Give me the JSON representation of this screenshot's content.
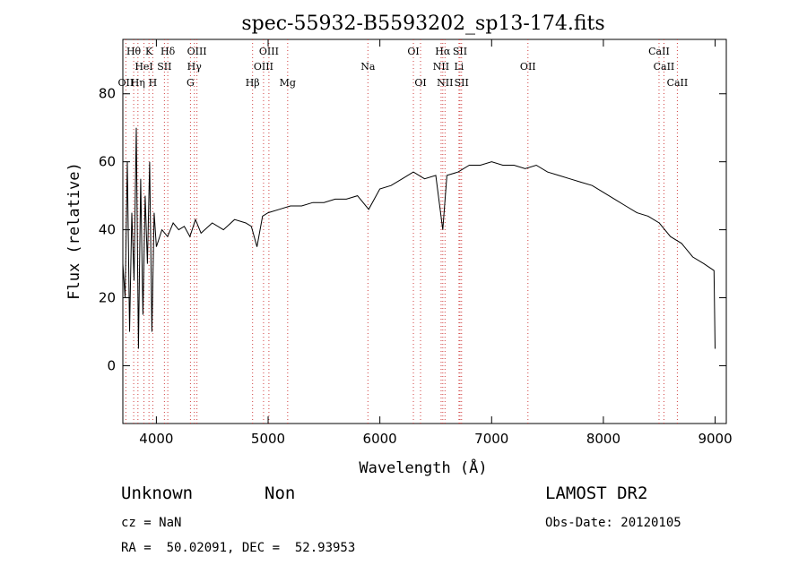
{
  "chart_data": {
    "type": "line",
    "title": "spec-55932-B5593202_sp13-174.fits",
    "xlabel": "Wavelength (Å)",
    "ylabel": "Flux (relative)",
    "xlim": [
      3700,
      9100
    ],
    "ylim": [
      -17,
      96
    ],
    "xticks": [
      4000,
      5000,
      6000,
      7000,
      8000,
      9000
    ],
    "yticks": [
      0,
      20,
      40,
      60,
      80
    ],
    "grid": false,
    "series": [
      {
        "x": [
          3700,
          3720,
          3740,
          3760,
          3780,
          3800,
          3820,
          3840,
          3860,
          3880,
          3900,
          3920,
          3940,
          3960,
          3980,
          4000,
          4050,
          4100,
          4150,
          4200,
          4250,
          4300,
          4350,
          4400,
          4500,
          4600,
          4700,
          4800,
          4850,
          4900,
          4950,
          5000,
          5100,
          5200,
          5300,
          5400,
          5500,
          5600,
          5700,
          5800,
          5900,
          6000,
          6100,
          6200,
          6300,
          6400,
          6500,
          6563,
          6600,
          6700,
          6800,
          6900,
          7000,
          7100,
          7200,
          7300,
          7400,
          7500,
          7600,
          7700,
          7800,
          7900,
          8000,
          8100,
          8200,
          8300,
          8400,
          8500,
          8600,
          8700,
          8800,
          8900,
          8990,
          9000
        ],
        "y": [
          30,
          20,
          60,
          10,
          45,
          25,
          70,
          5,
          55,
          15,
          50,
          30,
          60,
          10,
          45,
          35,
          40,
          38,
          42,
          40,
          41,
          38,
          43,
          39,
          42,
          40,
          43,
          42,
          41,
          35,
          44,
          45,
          46,
          47,
          47,
          48,
          48,
          49,
          49,
          50,
          46,
          52,
          53,
          55,
          57,
          55,
          56,
          40,
          56,
          57,
          59,
          59,
          60,
          59,
          59,
          58,
          59,
          57,
          56,
          55,
          54,
          53,
          51,
          49,
          47,
          45,
          44,
          42,
          38,
          36,
          32,
          30,
          28,
          5
        ]
      }
    ],
    "spectral_lines": [
      {
        "label": "Hθ",
        "x": 3797,
        "row": 0
      },
      {
        "label": "K",
        "x": 3934,
        "row": 0
      },
      {
        "label": "Hδ",
        "x": 4102,
        "row": 0
      },
      {
        "label": "OIII",
        "x": 4363,
        "row": 0
      },
      {
        "label": "OIII",
        "x": 5007,
        "row": 0
      },
      {
        "label": "OI",
        "x": 6300,
        "row": 0
      },
      {
        "label": "Hα",
        "x": 6563,
        "row": 0
      },
      {
        "label": "SII",
        "x": 6717,
        "row": 0
      },
      {
        "label": "CaII",
        "x": 8498,
        "row": 0
      },
      {
        "label": "HeI",
        "x": 3889,
        "row": 1
      },
      {
        "label": "SII",
        "x": 4072,
        "row": 1
      },
      {
        "label": "Hγ",
        "x": 4340,
        "row": 1
      },
      {
        "label": "OIII",
        "x": 4959,
        "row": 1
      },
      {
        "label": "Na",
        "x": 5893,
        "row": 1
      },
      {
        "label": "NII",
        "x": 6548,
        "row": 1
      },
      {
        "label": "Li",
        "x": 6708,
        "row": 1
      },
      {
        "label": "OII",
        "x": 7325,
        "row": 1
      },
      {
        "label": "CaII",
        "x": 8542,
        "row": 1
      },
      {
        "label": "OII",
        "x": 3727,
        "row": 2
      },
      {
        "label": "Hη",
        "x": 3835,
        "row": 2
      },
      {
        "label": "H",
        "x": 3968,
        "row": 2
      },
      {
        "label": "G",
        "x": 4305,
        "row": 2
      },
      {
        "label": "Hβ",
        "x": 4861,
        "row": 2
      },
      {
        "label": "Mg",
        "x": 5175,
        "row": 2
      },
      {
        "label": "OI",
        "x": 6364,
        "row": 2
      },
      {
        "label": "NII",
        "x": 6583,
        "row": 2
      },
      {
        "label": "SII",
        "x": 6731,
        "row": 2
      },
      {
        "label": "CaII",
        "x": 8662,
        "row": 2
      }
    ]
  },
  "footer": {
    "class_label": "Unknown",
    "subclass_label": "Non",
    "survey_label": "LAMOST DR2",
    "cz_text": "cz = NaN",
    "obs_date_text": "Obs-Date: 20120105",
    "coords_text": "RA =  50.02091, DEC =  52.93953"
  }
}
